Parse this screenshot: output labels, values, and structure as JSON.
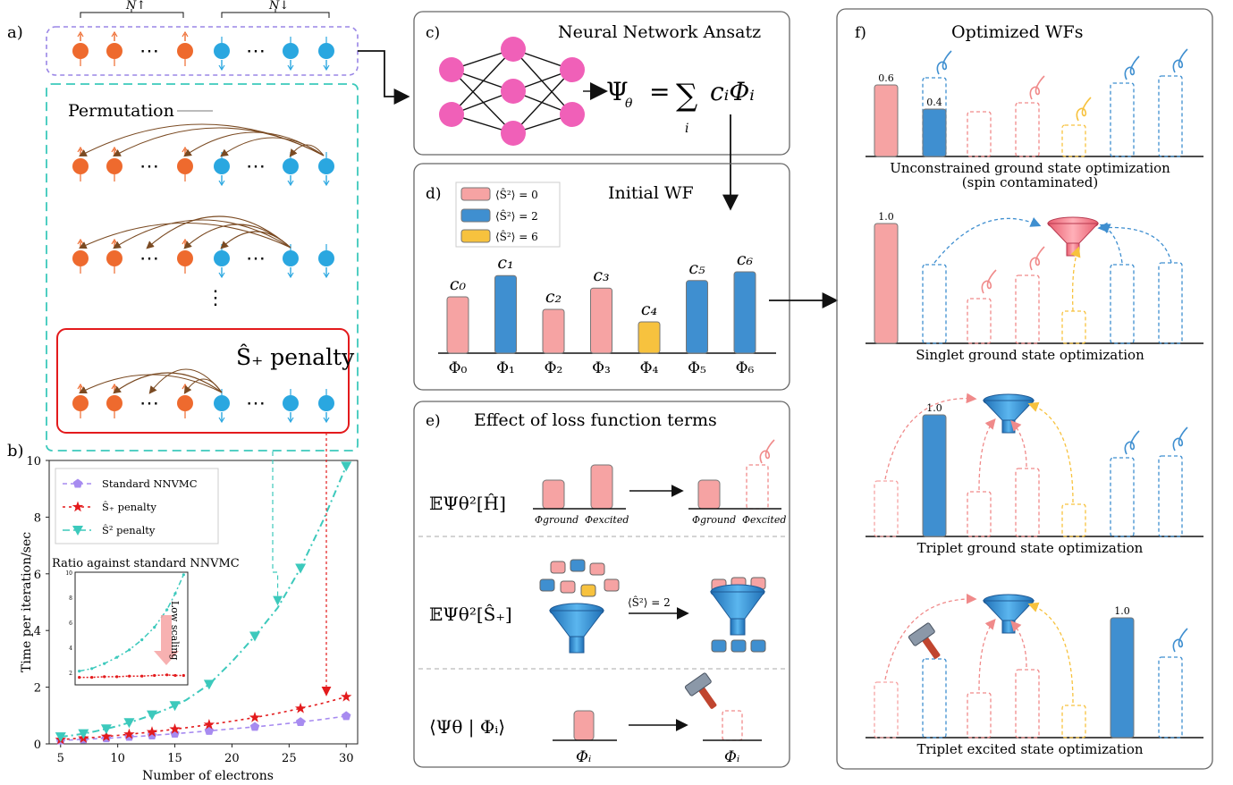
{
  "colors": {
    "up": "#ee6a2e",
    "down": "#2aa7e0",
    "pink": "#f6a3a3",
    "blue": "#3f8fd0",
    "yellow": "#f7c23e",
    "teal": "#3cc9bc",
    "red": "#e31a1c",
    "purple": "#a78bf0",
    "brown": "#7a4a22",
    "panel": "#555555"
  },
  "panel_a": {
    "label": "a)",
    "n_up": "N↑",
    "n_down": "N↓",
    "ellipsis": "⋯",
    "vdots": "⋮",
    "permutation": "Permutation",
    "penalty": "Ŝ₊ penalty"
  },
  "panel_b": {
    "label": "b)",
    "inset_title": "Ratio against standard NNVMC",
    "low_scaling": "Low scaling"
  },
  "panel_c": {
    "label": "c)",
    "title": "Neural Network Ansatz",
    "formula_lhs": "Ψ",
    "formula_sub": "θ",
    "formula_eq": "=",
    "formula_sum": "∑",
    "formula_sum_index": "i",
    "formula_rhs": "cᵢΦᵢ"
  },
  "panel_d": {
    "label": "d)",
    "title": "Initial WF",
    "legend": [
      "⟨Ŝ²⟩ = 0",
      "⟨Ŝ²⟩ = 2",
      "⟨Ŝ²⟩ = 6"
    ],
    "bars": [
      {
        "c": "c₀",
        "phi": "Φ₀",
        "type": "pink",
        "h": 0.45
      },
      {
        "c": "c₁",
        "phi": "Φ₁",
        "type": "blue",
        "h": 0.62
      },
      {
        "c": "c₂",
        "phi": "Φ₂",
        "type": "pink",
        "h": 0.35
      },
      {
        "c": "c₃",
        "phi": "Φ₃",
        "type": "pink",
        "h": 0.52
      },
      {
        "c": "c₄",
        "phi": "Φ₄",
        "type": "yellow",
        "h": 0.25
      },
      {
        "c": "c₅",
        "phi": "Φ₅",
        "type": "blue",
        "h": 0.58
      },
      {
        "c": "c₆",
        "phi": "Φ₆",
        "type": "blue",
        "h": 0.65
      }
    ]
  },
  "panel_e": {
    "label": "e)",
    "title": "Effect of loss function terms",
    "row1_term": "𝔼Ψθ²[Ĥ]",
    "phi_ground": "Φground",
    "phi_excited": "Φexcited",
    "row2_term": "𝔼Ψθ²[Ŝ₊]",
    "s2_eq": "⟨Ŝ²⟩ = 2",
    "row3_term": "⟨Ψθ | Φᵢ⟩",
    "phi_i": "Φᵢ"
  },
  "panel_f": {
    "label": "f)",
    "title": "Optimized WFs",
    "rows": [
      {
        "caption": "Unconstrained ground state optimization",
        "caption2": "(spin contaminated)",
        "v1": "0.6",
        "v2": "0.4"
      },
      {
        "caption": "Singlet ground state optimization",
        "v1": "1.0"
      },
      {
        "caption": "Triplet ground state optimization",
        "v1": "1.0"
      },
      {
        "caption": "Triplet excited state optimization",
        "v1": "1.0"
      }
    ]
  },
  "chart_data": {
    "type": "line",
    "xlabel": "Number of electrons",
    "ylabel": "Time per iteration/sec",
    "xlim": [
      4,
      31
    ],
    "ylim": [
      0,
      10
    ],
    "xticks": [
      5,
      10,
      15,
      20,
      25,
      30
    ],
    "yticks": [
      0,
      2,
      4,
      6,
      8,
      10
    ],
    "legend_position": "top-left",
    "series": [
      {
        "name": "Standard NNVMC",
        "color": "#a78bf0",
        "marker": "pentagon",
        "x": [
          5,
          6,
          7,
          8,
          9,
          10,
          11,
          12,
          13,
          14,
          15,
          16,
          18,
          20,
          22,
          24,
          26,
          28,
          30
        ],
        "y": [
          0.12,
          0.14,
          0.16,
          0.18,
          0.2,
          0.22,
          0.25,
          0.27,
          0.3,
          0.33,
          0.36,
          0.39,
          0.46,
          0.53,
          0.6,
          0.68,
          0.77,
          0.87,
          0.98
        ]
      },
      {
        "name": "Ŝ₊ penalty",
        "color": "#e31a1c",
        "marker": "star",
        "x": [
          5,
          6,
          7,
          8,
          9,
          10,
          11,
          12,
          13,
          14,
          15,
          16,
          18,
          20,
          22,
          24,
          26,
          28,
          30
        ],
        "y": [
          0.15,
          0.18,
          0.2,
          0.23,
          0.26,
          0.3,
          0.34,
          0.38,
          0.42,
          0.47,
          0.52,
          0.57,
          0.68,
          0.8,
          0.93,
          1.08,
          1.25,
          1.44,
          1.66
        ]
      },
      {
        "name": "Ŝ² penalty",
        "color": "#3cc9bc",
        "marker": "triangle",
        "x": [
          5,
          6,
          7,
          8,
          9,
          10,
          11,
          12,
          13,
          14,
          15,
          16,
          18,
          20,
          22,
          24,
          26,
          28,
          30
        ],
        "y": [
          0.25,
          0.3,
          0.36,
          0.44,
          0.53,
          0.63,
          0.75,
          0.88,
          1.02,
          1.18,
          1.35,
          1.55,
          2.1,
          2.9,
          3.8,
          4.8,
          6.2,
          7.9,
          9.8
        ]
      }
    ],
    "inset": {
      "xlim": [
        4,
        31
      ],
      "ylim": [
        1,
        10
      ],
      "yticks": [
        2,
        4,
        6,
        8,
        10
      ],
      "series": [
        {
          "name": "Ŝ₊ penalty",
          "color": "#e31a1c",
          "x": [
            5,
            8,
            11,
            14,
            17,
            20,
            23,
            26,
            28,
            30
          ],
          "y": [
            1.6,
            1.6,
            1.65,
            1.65,
            1.7,
            1.7,
            1.75,
            1.8,
            1.75,
            1.75
          ]
        },
        {
          "name": "Ŝ² penalty",
          "color": "#3cc9bc",
          "x": [
            5,
            8,
            11,
            14,
            17,
            20,
            23,
            26,
            28,
            30
          ],
          "y": [
            2.1,
            2.3,
            2.7,
            3.2,
            3.8,
            4.6,
            5.6,
            7.0,
            8.3,
            9.8
          ]
        }
      ]
    }
  }
}
